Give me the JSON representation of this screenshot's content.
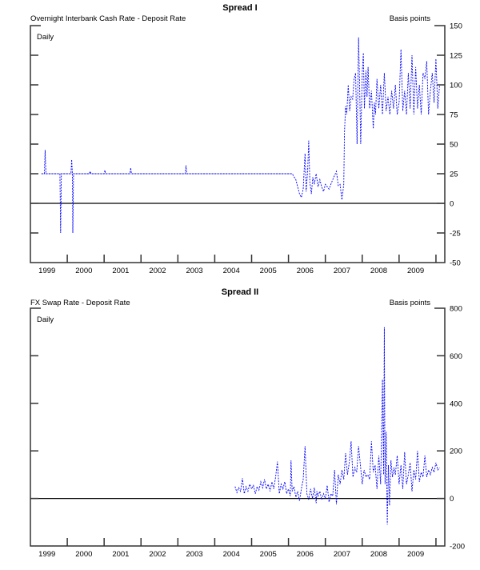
{
  "chart_data": [
    {
      "type": "line",
      "title": "Spread I",
      "subtitle": "Overnight Interbank Cash Rate - Deposit Rate",
      "ylabel": "Basis points",
      "annotation": "Daily",
      "xlim": [
        1999,
        2010.24
      ],
      "ylim": [
        -50,
        150
      ],
      "yticks": [
        150,
        125,
        100,
        75,
        50,
        25,
        0,
        -25,
        -50
      ],
      "xtick_labels": [
        "1999",
        "2000",
        "2001",
        "2002",
        "2003",
        "2004",
        "2005",
        "2006",
        "2007",
        "2008",
        "2009"
      ],
      "grid": false,
      "line_color": "#0000ff",
      "reference_line": 0,
      "series": [
        {
          "x": [
            1999.3,
            1999.38,
            1999.4,
            1999.42,
            1999.8,
            1999.82,
            1999.84,
            2000.1,
            2000.12,
            2000.14,
            2000.15,
            2000.17,
            2000.6,
            2000.62,
            2000.64,
            2001.0,
            2001.02,
            2001.04,
            2001.7,
            2001.72,
            2001.74,
            2003.2,
            2003.22,
            2003.24,
            2006.1,
            2006.2,
            2006.3,
            2006.35,
            2006.4,
            2006.45,
            2006.48,
            2006.52,
            2006.55,
            2006.58,
            2006.62,
            2006.66,
            2006.7,
            2006.75,
            2006.8,
            2006.85,
            2006.9,
            2006.95,
            2007.0,
            2007.1,
            2007.2,
            2007.3,
            2007.35,
            2007.4,
            2007.45,
            2007.5,
            2007.52,
            2007.55,
            2007.58,
            2007.62,
            2007.66,
            2007.7,
            2007.74,
            2007.78,
            2007.82,
            2007.86,
            2007.9,
            2007.93,
            2007.96,
            2008.0,
            2008.03,
            2008.06,
            2008.1,
            2008.13,
            2008.16,
            2008.2,
            2008.25,
            2008.3,
            2008.33,
            2008.36,
            2008.4,
            2008.45,
            2008.5,
            2008.55,
            2008.6,
            2008.65,
            2008.7,
            2008.75,
            2008.8,
            2008.85,
            2008.9,
            2008.95,
            2009.0,
            2009.05,
            2009.1,
            2009.15,
            2009.2,
            2009.25,
            2009.3,
            2009.35,
            2009.4,
            2009.45,
            2009.5,
            2009.55,
            2009.6,
            2009.65,
            2009.7,
            2009.75,
            2009.8,
            2009.85,
            2009.9,
            2009.95,
            2010.0,
            2010.05,
            2010.1
          ],
          "y": [
            25,
            25,
            45,
            25,
            25,
            -25,
            25,
            25,
            37,
            25,
            -25,
            25,
            25,
            27,
            25,
            25,
            28,
            25,
            25,
            30,
            25,
            25,
            32,
            25,
            25,
            20,
            8,
            5,
            12,
            42,
            10,
            28,
            53,
            18,
            8,
            22,
            16,
            25,
            14,
            20,
            14,
            10,
            16,
            12,
            20,
            27,
            15,
            16,
            3,
            16,
            60,
            82,
            75,
            100,
            78,
            90,
            88,
            105,
            110,
            50,
            140,
            100,
            50,
            110,
            127,
            80,
            112,
            90,
            115,
            80,
            95,
            63,
            85,
            75,
            105,
            80,
            100,
            75,
            110,
            78,
            90,
            75,
            95,
            80,
            100,
            75,
            85,
            130,
            78,
            95,
            75,
            110,
            80,
            125,
            75,
            115,
            80,
            100,
            75,
            110,
            105,
            120,
            75,
            95,
            110,
            85,
            122,
            80,
            100
          ]
        }
      ]
    },
    {
      "type": "line",
      "title": "Spread II",
      "subtitle": "FX Swap Rate - Deposit Rate",
      "ylabel": "Basis points",
      "annotation": "Daily",
      "xlim": [
        1999,
        2010.24
      ],
      "ylim": [
        -200,
        800
      ],
      "yticks": [
        800,
        600,
        400,
        200,
        0,
        -200
      ],
      "xtick_labels": [
        "1999",
        "2000",
        "2001",
        "2002",
        "2003",
        "2004",
        "2005",
        "2006",
        "2007",
        "2008",
        "2009"
      ],
      "grid": false,
      "line_color": "#0000ff",
      "reference_line": 0,
      "series": [
        {
          "x": [
            2004.55,
            2004.6,
            2004.65,
            2004.7,
            2004.75,
            2004.8,
            2004.85,
            2004.9,
            2004.95,
            2005.0,
            2005.05,
            2005.1,
            2005.15,
            2005.2,
            2005.25,
            2005.3,
            2005.35,
            2005.4,
            2005.45,
            2005.5,
            2005.55,
            2005.6,
            2005.65,
            2005.7,
            2005.75,
            2005.8,
            2005.85,
            2005.9,
            2005.95,
            2006.0,
            2006.05,
            2006.07,
            2006.1,
            2006.15,
            2006.2,
            2006.25,
            2006.3,
            2006.35,
            2006.4,
            2006.45,
            2006.5,
            2006.55,
            2006.6,
            2006.65,
            2006.7,
            2006.75,
            2006.77,
            2006.8,
            2006.85,
            2006.9,
            2006.95,
            2007.0,
            2007.05,
            2007.1,
            2007.15,
            2007.2,
            2007.25,
            2007.3,
            2007.35,
            2007.4,
            2007.45,
            2007.5,
            2007.55,
            2007.6,
            2007.65,
            2007.7,
            2007.75,
            2007.8,
            2007.85,
            2007.9,
            2007.95,
            2008.0,
            2008.05,
            2008.1,
            2008.15,
            2008.2,
            2008.25,
            2008.3,
            2008.35,
            2008.4,
            2008.45,
            2008.5,
            2008.55,
            2008.58,
            2008.6,
            2008.62,
            2008.65,
            2008.68,
            2008.71,
            2008.74,
            2008.78,
            2008.82,
            2008.86,
            2008.9,
            2008.95,
            2009.0,
            2009.05,
            2009.1,
            2009.15,
            2009.2,
            2009.25,
            2009.3,
            2009.35,
            2009.4,
            2009.45,
            2009.5,
            2009.55,
            2009.6,
            2009.65,
            2009.7,
            2009.75,
            2009.8,
            2009.85,
            2009.9,
            2009.95,
            2010.0,
            2010.05,
            2010.1
          ],
          "y": [
            50,
            25,
            45,
            30,
            85,
            20,
            50,
            30,
            60,
            40,
            55,
            20,
            50,
            35,
            70,
            45,
            80,
            40,
            60,
            30,
            70,
            40,
            90,
            155,
            20,
            60,
            40,
            70,
            20,
            40,
            10,
            160,
            30,
            50,
            5,
            30,
            -10,
            40,
            80,
            220,
            20,
            -5,
            40,
            0,
            45,
            -20,
            30,
            10,
            30,
            -5,
            20,
            0,
            55,
            -15,
            20,
            10,
            120,
            -25,
            100,
            60,
            120,
            80,
            190,
            100,
            150,
            240,
            90,
            130,
            110,
            220,
            140,
            60,
            120,
            90,
            100,
            80,
            240,
            110,
            140,
            40,
            180,
            60,
            500,
            100,
            720,
            60,
            280,
            -110,
            140,
            -30,
            160,
            90,
            130,
            100,
            180,
            60,
            140,
            40,
            195,
            60,
            100,
            150,
            30,
            120,
            80,
            200,
            70,
            110,
            90,
            180,
            90,
            120,
            100,
            130,
            110,
            150,
            120,
            130
          ]
        }
      ]
    }
  ]
}
